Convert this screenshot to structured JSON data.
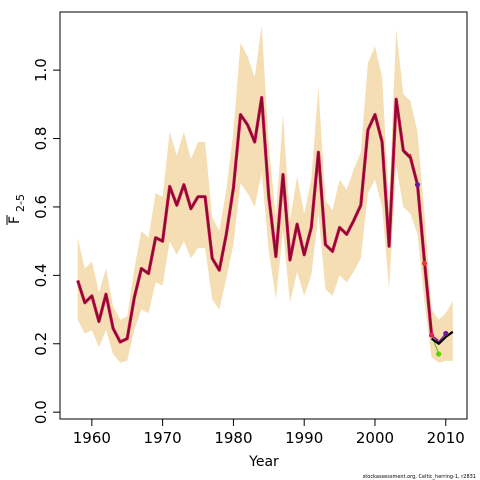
{
  "chart_data": {
    "type": "line",
    "title": "",
    "xlabel": "Year",
    "ylabel_main": "F",
    "ylabel_sub": "2-5",
    "xlim": [
      1955.5,
      2013
    ],
    "ylim": [
      -0.02,
      1.17
    ],
    "x_ticks": [
      1960,
      1970,
      1980,
      1990,
      2000,
      2010
    ],
    "y_ticks": [
      0.0,
      0.2,
      0.4,
      0.6,
      0.8,
      1.0
    ],
    "y_tick_labels": [
      "0.0",
      "0.2",
      "0.4",
      "0.6",
      "0.8",
      "1.0"
    ],
    "grid": false,
    "legend": "none",
    "colors": {
      "band": "#f5deb3",
      "main_line": "#8b0a2f",
      "main_line_under": "#d81b60",
      "retro_1": "#2e7d32",
      "retro_2": "#e91e63",
      "retro_3": "#d32f2f",
      "retro_4": "#6a1b9a",
      "retro_5": "#66cc00",
      "latest": "#000000"
    },
    "series": [
      {
        "key": "main",
        "x": [
          1958,
          1959,
          1960,
          1961,
          1962,
          1963,
          1964,
          1965,
          1966,
          1967,
          1968,
          1969,
          1970,
          1971,
          1972,
          1973,
          1974,
          1975,
          1976,
          1977,
          1978,
          1979,
          1980,
          1981,
          1982,
          1983,
          1984,
          1985,
          1986,
          1987,
          1988,
          1989,
          1990,
          1991,
          1992,
          1993,
          1994,
          1995,
          1996,
          1997,
          1998,
          1999,
          2000,
          2001,
          2002,
          2003,
          2004,
          2005,
          2006,
          2007,
          2008
        ],
        "values": [
          0.385,
          0.32,
          0.34,
          0.265,
          0.345,
          0.245,
          0.205,
          0.215,
          0.335,
          0.42,
          0.405,
          0.51,
          0.5,
          0.66,
          0.605,
          0.665,
          0.595,
          0.63,
          0.63,
          0.45,
          0.415,
          0.52,
          0.655,
          0.87,
          0.84,
          0.79,
          0.92,
          0.63,
          0.455,
          0.695,
          0.445,
          0.55,
          0.46,
          0.54,
          0.76,
          0.49,
          0.47,
          0.54,
          0.52,
          0.56,
          0.605,
          0.825,
          0.87,
          0.79,
          0.485,
          0.915,
          0.765,
          0.745,
          0.665,
          0.44,
          0.225
        ]
      },
      {
        "key": "upper",
        "x": [
          1958,
          1959,
          1960,
          1961,
          1962,
          1963,
          1964,
          1965,
          1966,
          1967,
          1968,
          1969,
          1970,
          1971,
          1972,
          1973,
          1974,
          1975,
          1976,
          1977,
          1978,
          1979,
          1980,
          1981,
          1982,
          1983,
          1984,
          1985,
          1986,
          1987,
          1988,
          1989,
          1990,
          1991,
          1992,
          1993,
          1994,
          1995,
          1996,
          1997,
          1998,
          1999,
          2000,
          2001,
          2002,
          2003,
          2004,
          2005,
          2006,
          2007,
          2008,
          2009,
          2010,
          2011
        ],
        "values": [
          0.51,
          0.42,
          0.44,
          0.35,
          0.42,
          0.31,
          0.27,
          0.28,
          0.42,
          0.53,
          0.51,
          0.64,
          0.63,
          0.82,
          0.75,
          0.82,
          0.74,
          0.79,
          0.79,
          0.57,
          0.53,
          0.65,
          0.82,
          1.08,
          1.04,
          0.98,
          1.13,
          0.78,
          0.57,
          0.87,
          0.56,
          0.69,
          0.58,
          0.68,
          0.95,
          0.62,
          0.59,
          0.68,
          0.65,
          0.71,
          0.76,
          1.02,
          1.07,
          0.98,
          0.61,
          1.12,
          0.93,
          0.91,
          0.82,
          0.58,
          0.3,
          0.27,
          0.29,
          0.325
        ]
      },
      {
        "key": "lower",
        "x": [
          1958,
          1959,
          1960,
          1961,
          1962,
          1963,
          1964,
          1965,
          1966,
          1967,
          1968,
          1969,
          1970,
          1971,
          1972,
          1973,
          1974,
          1975,
          1976,
          1977,
          1978,
          1979,
          1980,
          1981,
          1982,
          1983,
          1984,
          1985,
          1986,
          1987,
          1988,
          1989,
          1990,
          1991,
          1992,
          1993,
          1994,
          1995,
          1996,
          1997,
          1998,
          1999,
          2000,
          2001,
          2002,
          2003,
          2004,
          2005,
          2006,
          2007,
          2008,
          2009,
          2010,
          2011
        ],
        "values": [
          0.27,
          0.23,
          0.24,
          0.19,
          0.24,
          0.17,
          0.145,
          0.15,
          0.24,
          0.3,
          0.29,
          0.38,
          0.37,
          0.5,
          0.46,
          0.5,
          0.45,
          0.48,
          0.48,
          0.33,
          0.3,
          0.39,
          0.49,
          0.67,
          0.64,
          0.6,
          0.7,
          0.47,
          0.33,
          0.53,
          0.32,
          0.41,
          0.34,
          0.4,
          0.58,
          0.36,
          0.34,
          0.4,
          0.38,
          0.41,
          0.45,
          0.64,
          0.68,
          0.6,
          0.36,
          0.72,
          0.6,
          0.58,
          0.52,
          0.32,
          0.16,
          0.145,
          0.15,
          0.15
        ]
      },
      {
        "key": "retro_1",
        "x": [
          2004,
          2005,
          2006,
          2007,
          2008
        ],
        "values": [
          0.76,
          0.74,
          0.67,
          0.44,
          0.225
        ]
      },
      {
        "key": "retro_2",
        "x": [
          2004,
          2005,
          2006,
          2007,
          2008,
          2009
        ],
        "values": [
          0.765,
          0.75,
          0.675,
          0.44,
          0.225,
          0.21
        ]
      },
      {
        "key": "retro_3",
        "x": [
          2005,
          2006,
          2007
        ],
        "values": [
          0.755,
          0.67,
          0.435
        ]
      },
      {
        "key": "retro_4",
        "x": [
          2006,
          2007,
          2008,
          2009,
          2010
        ],
        "values": [
          0.665,
          0.44,
          0.225,
          0.205,
          0.23
        ]
      },
      {
        "key": "retro_5",
        "x": [
          2007,
          2008,
          2009
        ],
        "values": [
          0.44,
          0.225,
          0.17
        ]
      },
      {
        "key": "latest",
        "x": [
          2008,
          2009,
          2010,
          2011
        ],
        "values": [
          0.215,
          0.2,
          0.22,
          0.235
        ]
      }
    ],
    "end_points": [
      {
        "x": 2006,
        "y": 0.665,
        "color": "#6a1b9a"
      },
      {
        "x": 2007,
        "y": 0.435,
        "color": "#e53935"
      },
      {
        "x": 2008,
        "y": 0.225,
        "color": "#e91e63"
      },
      {
        "x": 2009,
        "y": 0.17,
        "color": "#66cc00"
      },
      {
        "x": 2010,
        "y": 0.23,
        "color": "#6a1b9a"
      }
    ],
    "credit": "stockassessment.org, Celtic_herring-1, r2831"
  }
}
